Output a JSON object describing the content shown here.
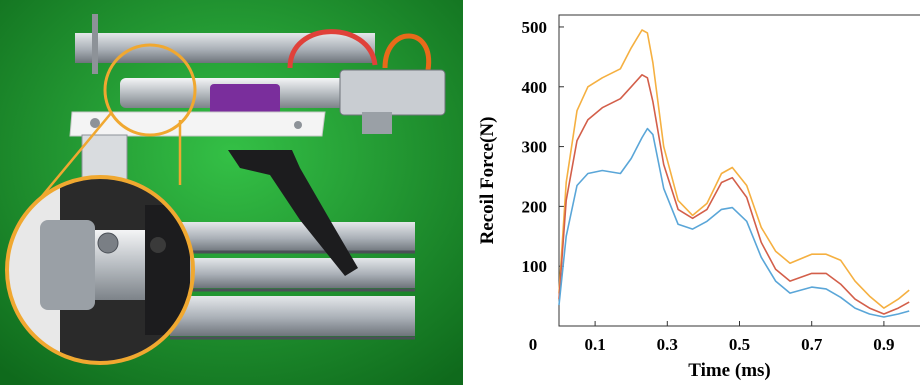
{
  "photo": {
    "description_icon": "recoil-test-rig-photo",
    "colors": {
      "backdrop": "#1f9a2c",
      "callout": "#f0a830",
      "rail": "#b9bec6",
      "grip": "#1c1c1e",
      "bracket": "#7a2e9c",
      "tube": "#e0413a"
    }
  },
  "chart_data": {
    "type": "line",
    "title": "",
    "xlabel": "Time (ms)",
    "ylabel": "Recoil Force(N)",
    "xlim": [
      0,
      1.0
    ],
    "ylim": [
      0,
      520
    ],
    "xticks": [
      "0",
      "0.1",
      "0.3",
      "0.5",
      "0.7",
      "0.9"
    ],
    "xtick_values": [
      0,
      0.1,
      0.3,
      0.5,
      0.7,
      0.9
    ],
    "yticks": [
      "100",
      "200",
      "300",
      "400",
      "500"
    ],
    "ytick_values": [
      100,
      200,
      300,
      400,
      500
    ],
    "grid": false,
    "series": [
      {
        "color": "#f5b041",
        "x": [
          0.0,
          0.02,
          0.05,
          0.08,
          0.12,
          0.17,
          0.2,
          0.23,
          0.245,
          0.26,
          0.29,
          0.33,
          0.37,
          0.41,
          0.45,
          0.48,
          0.52,
          0.56,
          0.6,
          0.64,
          0.7,
          0.74,
          0.78,
          0.82,
          0.86,
          0.9,
          0.94,
          0.97
        ],
        "y": [
          55,
          240,
          360,
          400,
          415,
          430,
          465,
          495,
          490,
          440,
          300,
          210,
          185,
          205,
          255,
          265,
          235,
          165,
          125,
          105,
          120,
          120,
          110,
          75,
          50,
          30,
          45,
          60
        ]
      },
      {
        "color": "#d35f4a",
        "x": [
          0.0,
          0.02,
          0.05,
          0.08,
          0.12,
          0.17,
          0.2,
          0.23,
          0.245,
          0.26,
          0.29,
          0.33,
          0.37,
          0.41,
          0.45,
          0.48,
          0.52,
          0.56,
          0.6,
          0.64,
          0.7,
          0.74,
          0.78,
          0.82,
          0.86,
          0.9,
          0.94,
          0.97
        ],
        "y": [
          45,
          210,
          310,
          345,
          365,
          380,
          400,
          420,
          415,
          375,
          270,
          195,
          180,
          195,
          240,
          248,
          215,
          140,
          95,
          75,
          88,
          88,
          70,
          45,
          30,
          20,
          30,
          40
        ]
      },
      {
        "color": "#5aa6d8",
        "x": [
          0.0,
          0.02,
          0.05,
          0.08,
          0.12,
          0.17,
          0.2,
          0.23,
          0.245,
          0.26,
          0.29,
          0.33,
          0.37,
          0.41,
          0.45,
          0.48,
          0.52,
          0.56,
          0.6,
          0.64,
          0.7,
          0.74,
          0.78,
          0.82,
          0.86,
          0.9,
          0.94,
          0.97
        ],
        "y": [
          35,
          150,
          235,
          255,
          260,
          255,
          280,
          315,
          330,
          320,
          230,
          170,
          162,
          175,
          195,
          198,
          175,
          115,
          75,
          55,
          65,
          62,
          48,
          30,
          20,
          15,
          20,
          25
        ]
      }
    ]
  }
}
